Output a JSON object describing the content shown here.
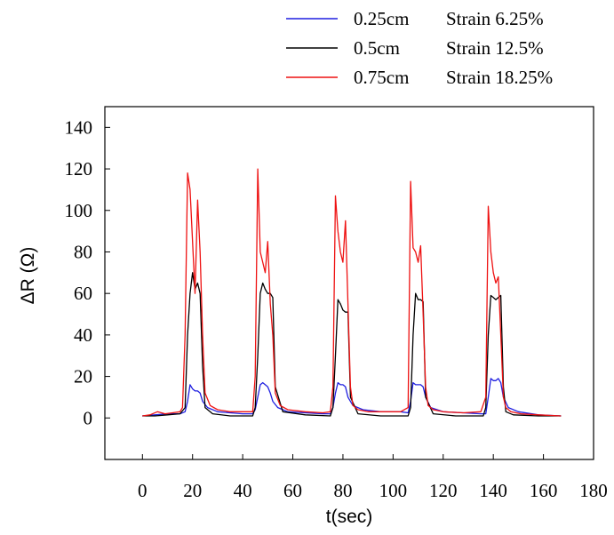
{
  "chart_data": {
    "type": "line",
    "xlabel": "t(sec)",
    "ylabel": "ΔR (Ω)",
    "xlim": [
      -15,
      180
    ],
    "ylim": [
      -20,
      150
    ],
    "xticks": [
      0,
      20,
      40,
      60,
      80,
      100,
      120,
      140,
      160,
      180
    ],
    "yticks": [
      0,
      20,
      40,
      60,
      80,
      100,
      120,
      140
    ],
    "legend": {
      "placement": "top-right, outside plot area"
    },
    "series": [
      {
        "name": "0.25cm",
        "strain_label": "Strain 6.25%",
        "color": "#1f1fe0",
        "x": [
          0,
          5,
          10,
          15,
          17,
          18,
          19,
          20,
          21,
          22,
          23,
          24,
          26,
          30,
          35,
          40,
          44,
          45,
          46,
          47,
          48,
          49,
          50,
          51,
          52,
          54,
          58,
          65,
          72,
          75,
          76,
          77,
          78,
          79,
          80,
          81,
          82,
          84,
          88,
          95,
          103,
          106,
          107,
          108,
          109,
          110,
          111,
          112,
          113,
          115,
          120,
          128,
          135,
          137,
          138,
          139,
          140,
          141,
          142,
          143,
          144,
          146,
          150,
          158,
          167
        ],
        "y": [
          1,
          1.5,
          2,
          2,
          3,
          8,
          16,
          14,
          13,
          13,
          12,
          8,
          5,
          3,
          2.5,
          2,
          2,
          4,
          10,
          16,
          17,
          16,
          15,
          12,
          8,
          5,
          3,
          2.5,
          2,
          2,
          5,
          12,
          17,
          16,
          16,
          15,
          10,
          6,
          4,
          3,
          3,
          2.5,
          8,
          17,
          16,
          16,
          16,
          15,
          10,
          5,
          3,
          2.5,
          2,
          2,
          10,
          19,
          18,
          18,
          19,
          17,
          10,
          5,
          3,
          1.5,
          1
        ]
      },
      {
        "name": "0.5cm",
        "strain_label": "Strain 12.5%",
        "color": "#000000",
        "x": [
          0,
          5,
          10,
          15,
          17,
          18,
          19,
          20,
          21,
          22,
          23,
          24,
          25,
          28,
          35,
          44,
          45,
          46,
          47,
          48,
          49,
          50,
          51,
          52,
          53,
          56,
          65,
          75,
          76,
          77,
          78,
          79,
          80,
          81,
          82,
          83,
          86,
          95,
          106,
          107,
          108,
          109,
          110,
          111,
          112,
          113,
          116,
          125,
          136,
          137,
          138,
          139,
          140,
          141,
          142,
          143,
          144,
          145,
          148,
          158,
          167
        ],
        "y": [
          1,
          1,
          1.5,
          2,
          5,
          40,
          60,
          70,
          62,
          65,
          60,
          25,
          5,
          2,
          1,
          1,
          5,
          30,
          60,
          65,
          62,
          60,
          60,
          58,
          15,
          3,
          1.5,
          1,
          5,
          30,
          57,
          55,
          52,
          51,
          51,
          10,
          2,
          1,
          1,
          5,
          40,
          60,
          57,
          57,
          56,
          10,
          2,
          1,
          1,
          5,
          40,
          59,
          58,
          57,
          58,
          59,
          15,
          3,
          1.5,
          1,
          1
        ]
      },
      {
        "name": "0.75cm",
        "strain_label": "Strain 18.25%",
        "color": "#ee1111",
        "x": [
          0,
          3,
          6,
          9,
          12,
          15,
          16,
          17,
          18,
          19,
          20,
          21,
          22,
          23,
          24,
          25,
          27,
          30,
          35,
          40,
          44,
          45,
          46,
          47,
          48,
          49,
          50,
          51,
          52,
          53,
          55,
          58,
          65,
          72,
          75,
          76,
          77,
          78,
          79,
          80,
          81,
          82,
          83,
          84,
          86,
          90,
          98,
          103,
          106,
          107,
          108,
          109,
          110,
          111,
          112,
          113,
          114,
          116,
          120,
          128,
          135,
          137,
          138,
          139,
          140,
          141,
          142,
          143,
          144,
          145,
          147,
          151,
          158,
          167
        ],
        "y": [
          1,
          1.5,
          3,
          2,
          2.5,
          3,
          5,
          40,
          118,
          110,
          85,
          60,
          105,
          80,
          40,
          12,
          6,
          4,
          3,
          3,
          3,
          20,
          120,
          80,
          75,
          70,
          85,
          55,
          40,
          12,
          6,
          4,
          3,
          2.5,
          3,
          15,
          107,
          90,
          80,
          75,
          95,
          55,
          15,
          6,
          4,
          3,
          3,
          3,
          5,
          114,
          82,
          80,
          75,
          83,
          50,
          15,
          6,
          4,
          3,
          2.5,
          3,
          10,
          102,
          80,
          70,
          65,
          68,
          40,
          10,
          5,
          3,
          2,
          1.5,
          1
        ]
      }
    ]
  }
}
